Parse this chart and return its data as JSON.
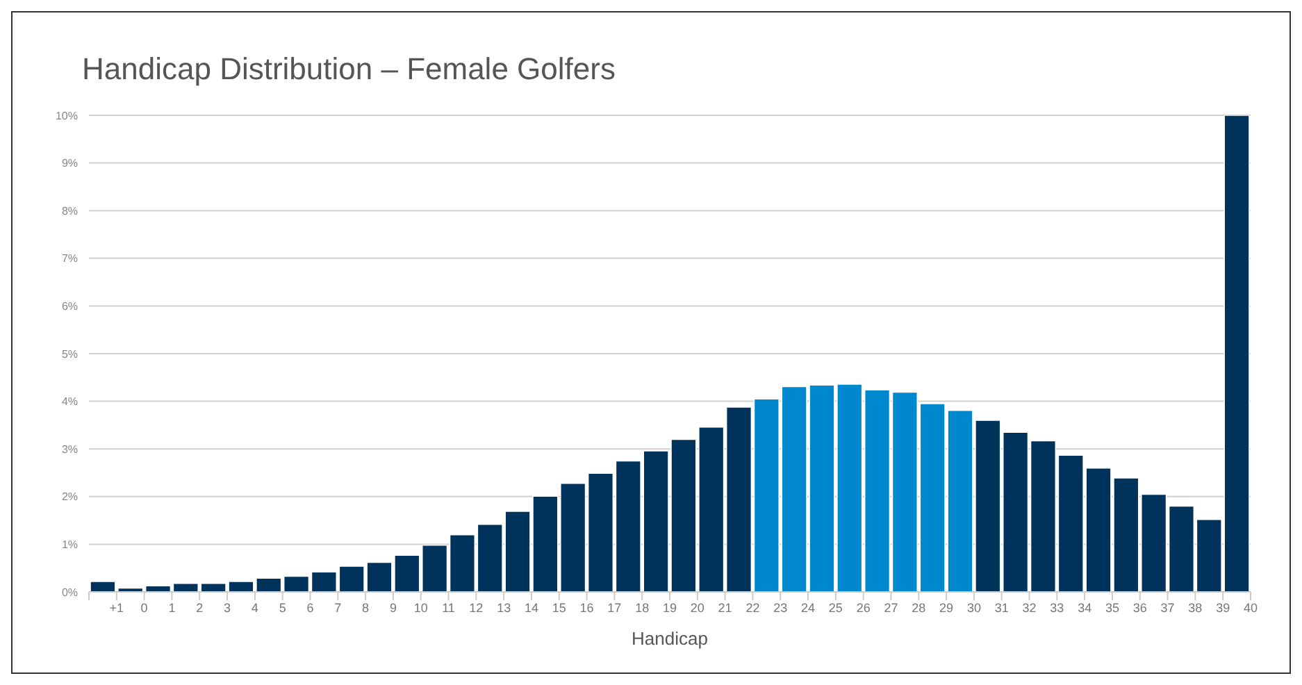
{
  "chart_data": {
    "type": "histogram",
    "title": "Handicap Distribution – Female Golfers",
    "xlabel": "Handicap",
    "bins": [
      -2,
      -1,
      0,
      1,
      2,
      3,
      4,
      5,
      6,
      7,
      8,
      9,
      10,
      11,
      12,
      13,
      14,
      15,
      16,
      17,
      18,
      19,
      20,
      21,
      22,
      23,
      24,
      25,
      26,
      27,
      28,
      29,
      30,
      31,
      32,
      33,
      34,
      35,
      36,
      37,
      38,
      39,
      40
    ],
    "values": [
      0.22,
      0.08,
      0.13,
      0.18,
      0.18,
      0.22,
      0.29,
      0.33,
      0.42,
      0.54,
      0.62,
      0.77,
      0.98,
      1.2,
      1.42,
      1.69,
      2.01,
      2.28,
      2.49,
      2.75,
      2.96,
      3.2,
      3.46,
      3.88,
      4.05,
      4.31,
      4.34,
      4.36,
      4.24,
      4.19,
      3.95,
      3.81,
      3.6,
      3.35,
      3.17,
      2.87,
      2.6,
      2.39,
      2.05,
      1.8,
      1.52,
      10.0
    ],
    "colors": [
      "#00335c",
      "#00335c",
      "#00335c",
      "#00335c",
      "#00335c",
      "#00335c",
      "#00335c",
      "#00335c",
      "#00335c",
      "#00335c",
      "#00335c",
      "#00335c",
      "#00335c",
      "#00335c",
      "#00335c",
      "#00335c",
      "#00335c",
      "#00335c",
      "#00335c",
      "#00335c",
      "#00335c",
      "#00335c",
      "#00335c",
      "#00335c",
      "#0088cf",
      "#0088cf",
      "#0088cf",
      "#0088cf",
      "#0088cf",
      "#0088cf",
      "#0088cf",
      "#0088cf",
      "#00335c",
      "#00335c",
      "#00335c",
      "#00335c",
      "#00335c",
      "#00335c",
      "#00335c",
      "#00335c",
      "#00335c",
      "#00335c"
    ],
    "xlim": [
      -2,
      40
    ],
    "xticks": [
      {
        "value": -2,
        "label": null
      },
      {
        "value": -1,
        "label": "+1"
      },
      0,
      1,
      2,
      3,
      4,
      5,
      6,
      7,
      8,
      9,
      10,
      11,
      12,
      13,
      14,
      15,
      16,
      17,
      18,
      19,
      20,
      21,
      22,
      23,
      24,
      25,
      26,
      27,
      28,
      29,
      30,
      31,
      32,
      33,
      34,
      35,
      36,
      37,
      38,
      39,
      40
    ],
    "ylim": [
      0,
      10
    ],
    "yticks": [
      {
        "value": 0,
        "label": "0%"
      },
      {
        "value": 1,
        "label": "1%"
      },
      {
        "value": 2,
        "label": "2%"
      },
      {
        "value": 3,
        "label": "3%"
      },
      {
        "value": 4,
        "label": "4%"
      },
      {
        "value": 5,
        "label": "5%"
      },
      {
        "value": 6,
        "label": "6%"
      },
      {
        "value": 7,
        "label": "7%"
      },
      {
        "value": 8,
        "label": "8%"
      },
      {
        "value": 9,
        "label": "9%"
      },
      {
        "value": 10,
        "label": "10%"
      }
    ],
    "grid": "y",
    "legend": false
  }
}
